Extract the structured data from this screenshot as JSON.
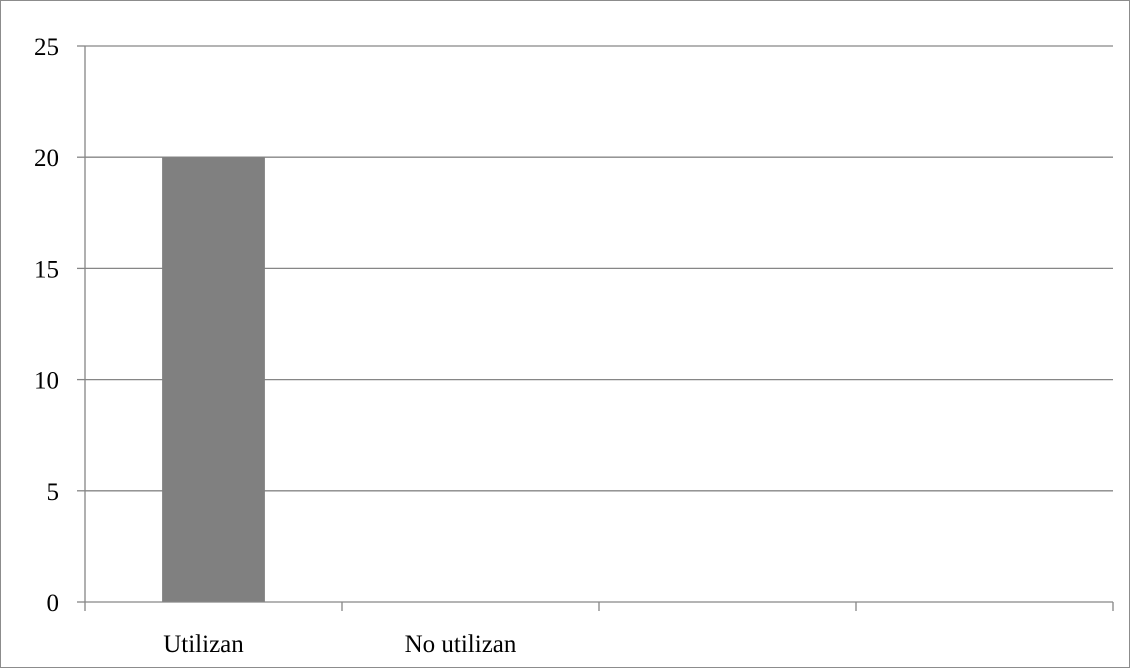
{
  "chart_data": {
    "type": "bar",
    "categories": [
      "Utilizan",
      "No utilizan",
      "",
      ""
    ],
    "values": [
      20,
      0,
      null,
      null
    ],
    "ylim": [
      0,
      25
    ],
    "yticks": [
      0,
      5,
      10,
      15,
      20,
      25
    ],
    "grid": true,
    "legend": "none",
    "bar_color": "#808080",
    "grid_color": "#868686"
  }
}
